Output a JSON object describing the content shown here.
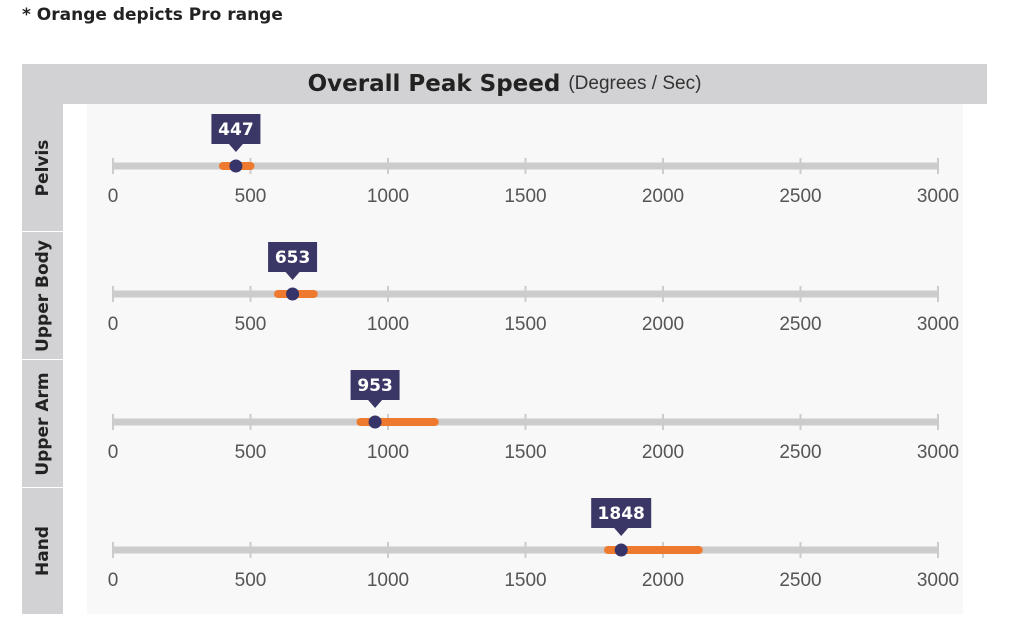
{
  "note": "* Orange depicts Pro range",
  "chart_title": "Overall Peak Speed",
  "chart_unit": "(Degrees / Sec)",
  "colors": {
    "track": "#cccccc",
    "pro_range": "#ee7a30",
    "marker": "#37346a",
    "callout_bg": "#3a3766",
    "callout_text": "#ffffff",
    "tick_text": "#555555",
    "header_bg": "#d2d2d4"
  },
  "chart_data": {
    "type": "bullet",
    "title": "Overall Peak Speed",
    "subtitle": "(Degrees / Sec)",
    "xlim": [
      0,
      3000
    ],
    "ticks": [
      0,
      500,
      1000,
      1500,
      2000,
      2500,
      3000
    ],
    "series": [
      {
        "name": "Pelvis",
        "value": 447,
        "value_label": "447",
        "pro_range": [
          400,
          500
        ]
      },
      {
        "name": "Upper Body",
        "value": 653,
        "value_label": "653",
        "pro_range": [
          600,
          730
        ]
      },
      {
        "name": "Upper Arm",
        "value": 953,
        "value_label": "953",
        "pro_range": [
          900,
          1170
        ]
      },
      {
        "name": "Hand",
        "value": 1848,
        "value_label": "1848",
        "pro_range": [
          1800,
          2130
        ]
      }
    ]
  }
}
